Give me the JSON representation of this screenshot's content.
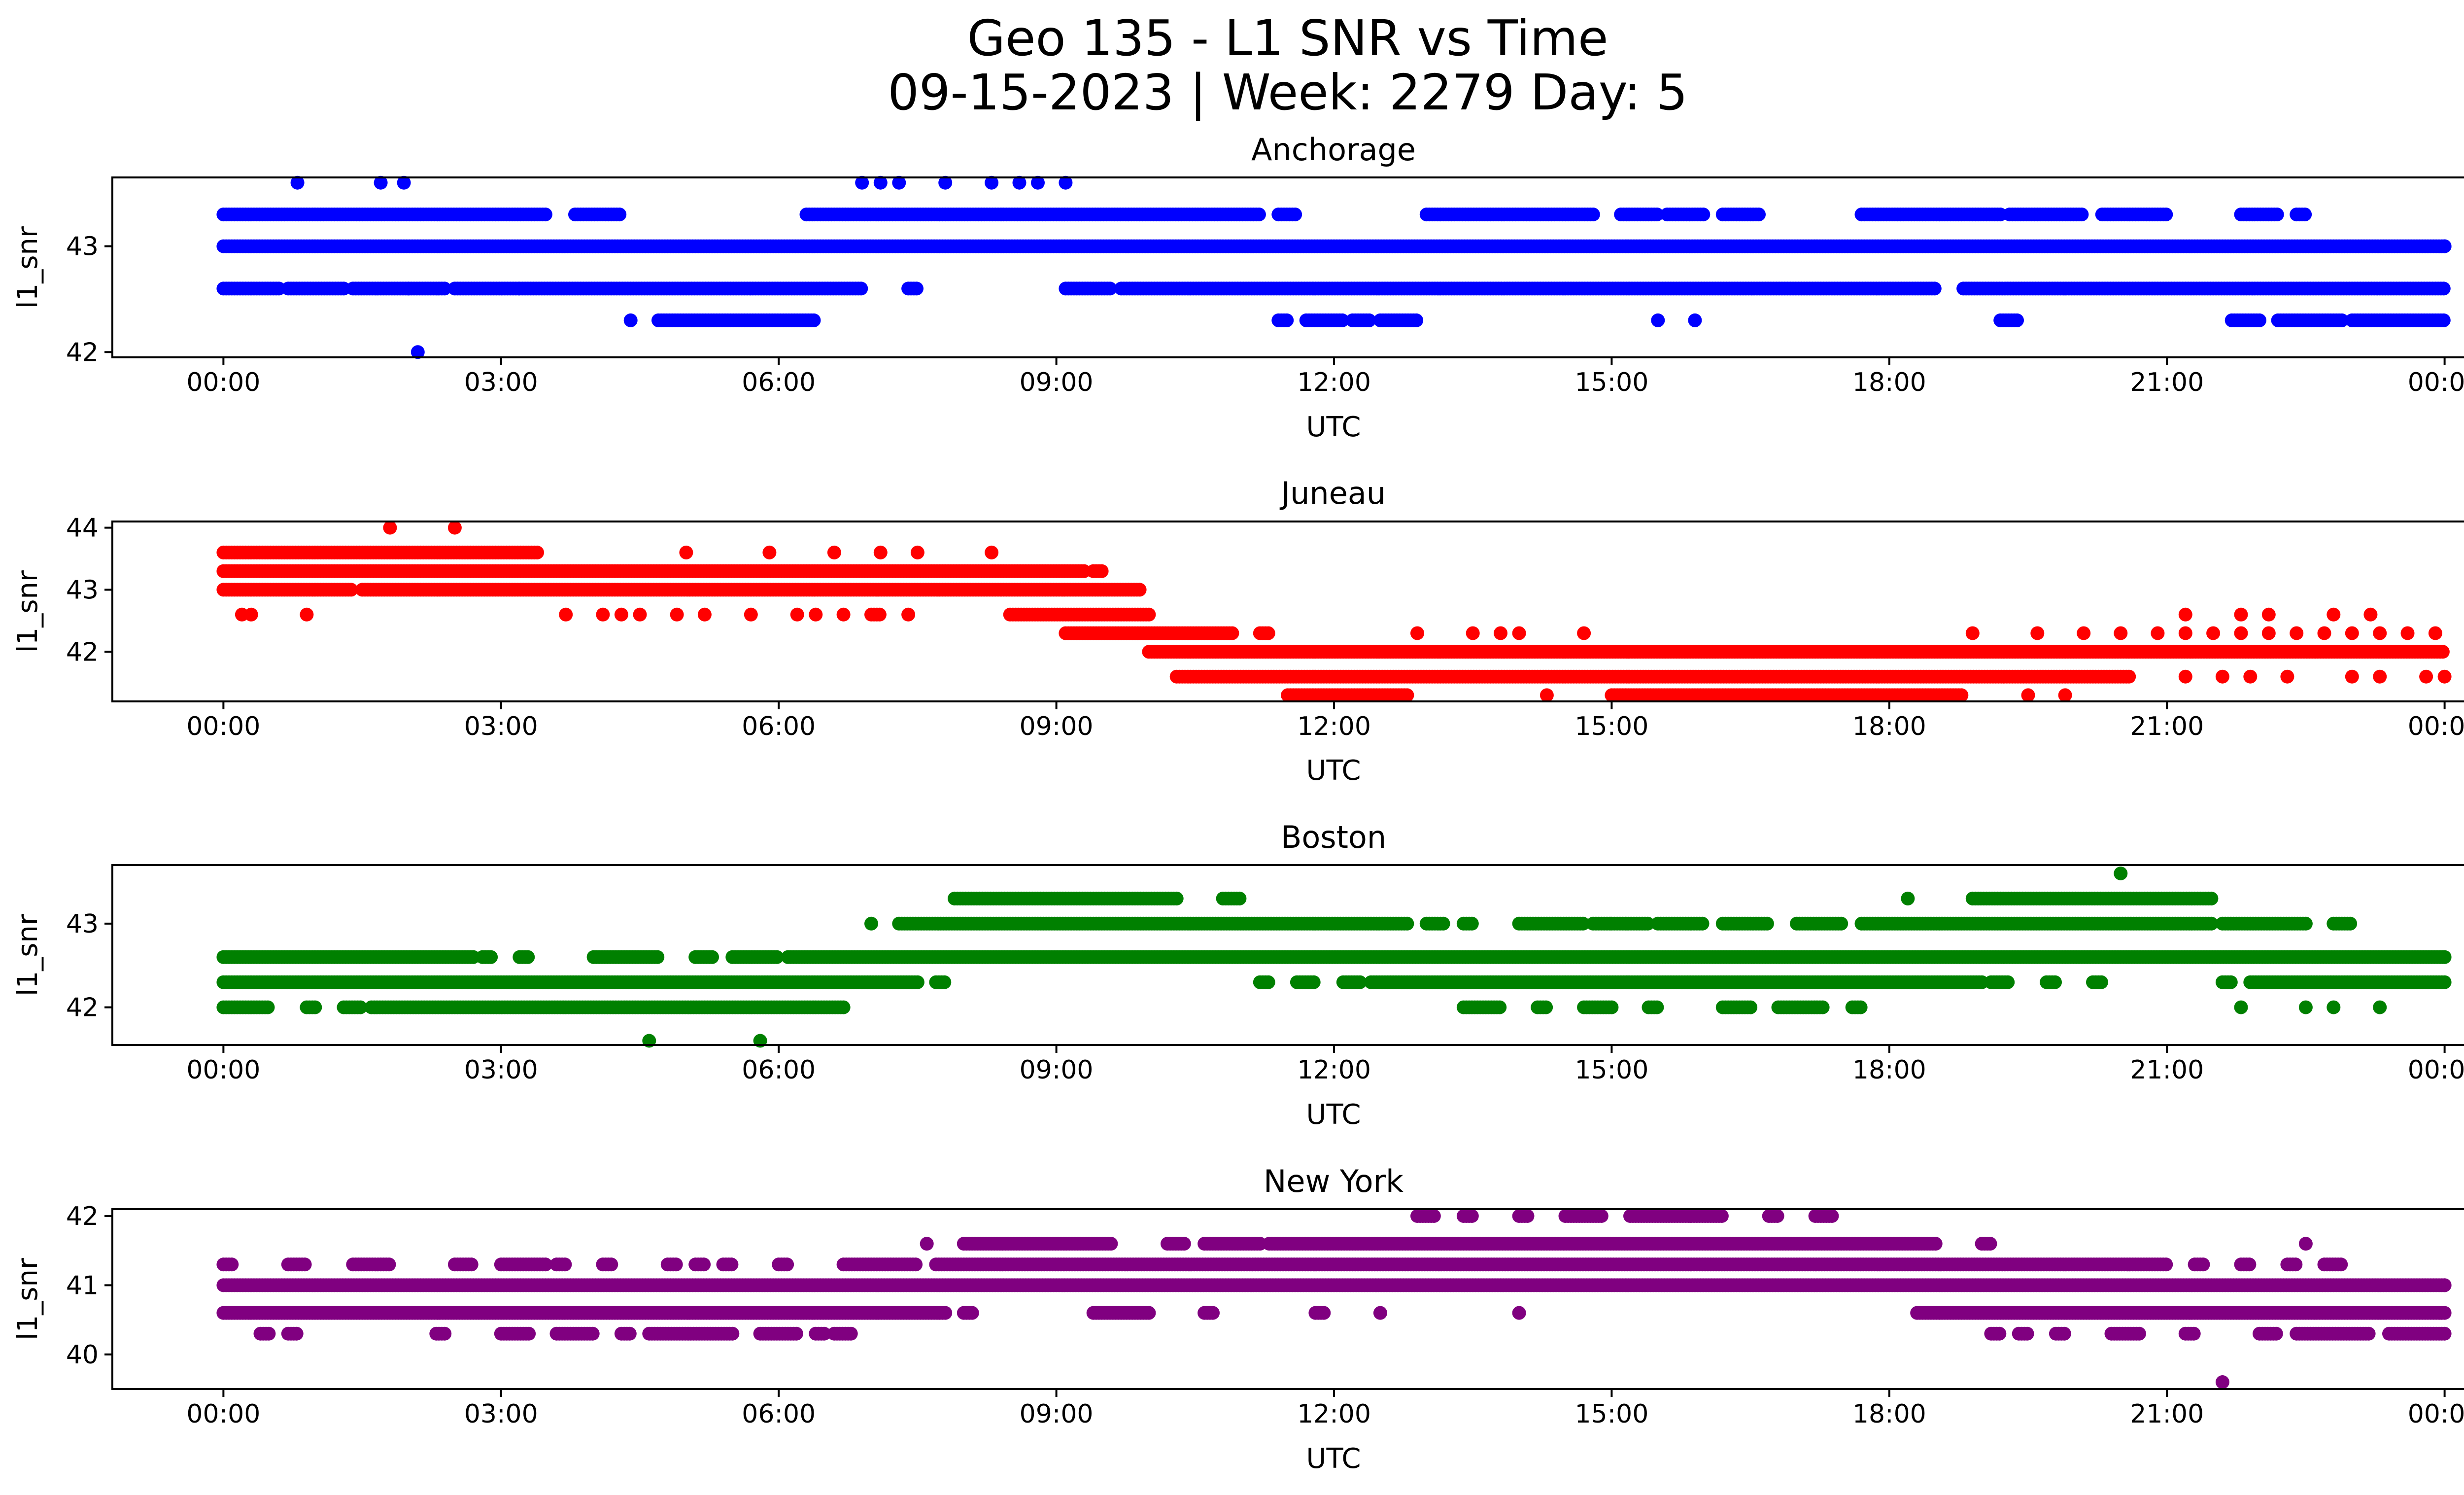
{
  "figure": {
    "title_line1": "Geo 135 - L1 SNR vs Time",
    "title_line2": "09-15-2023 | Week: 2279 Day: 5"
  },
  "chart_data": [
    {
      "type": "scatter",
      "title": "Anchorage",
      "xlabel": "UTC",
      "ylabel": "l1_snr",
      "color": "#0000ff",
      "xlim": [
        -1.2,
        25.2
      ],
      "ylim": [
        41.95,
        43.65
      ],
      "xticks": [
        "00:00",
        "03:00",
        "06:00",
        "09:00",
        "12:00",
        "15:00",
        "18:00",
        "21:00",
        "00:00"
      ],
      "xtick_values": [
        0,
        3,
        6,
        9,
        12,
        15,
        18,
        21,
        24
      ],
      "yticks": [
        42,
        43
      ],
      "bands": [
        {
          "y": 43.0,
          "x": [
            [
              0,
              24
            ]
          ]
        },
        {
          "y": 43.3,
          "x": [
            [
              0,
              3.5
            ],
            [
              3.8,
              4.3
            ],
            [
              6.3,
              11.2
            ],
            [
              11.4,
              11.6
            ],
            [
              13.0,
              14.8
            ],
            [
              15.1,
              15.5
            ],
            [
              15.6,
              16.0
            ],
            [
              16.2,
              16.6
            ],
            [
              17.7,
              19.2
            ],
            [
              19.3,
              20.1
            ],
            [
              20.3,
              21.0
            ],
            [
              21.8,
              22.2
            ],
            [
              22.4,
              22.5
            ]
          ]
        },
        {
          "y": 42.6,
          "x": [
            [
              0,
              0.6
            ],
            [
              0.7,
              1.3
            ],
            [
              1.4,
              2.0
            ],
            [
              2.0,
              2.4
            ],
            [
              2.5,
              3.2
            ],
            [
              3.2,
              6.9
            ],
            [
              7.4,
              7.5
            ],
            [
              9.1,
              9.6
            ],
            [
              9.7,
              18.5
            ],
            [
              18.8,
              24
            ]
          ]
        },
        {
          "y": 42.3,
          "x": [
            [
              4.7,
              6.4
            ],
            [
              11.4,
              11.5
            ],
            [
              11.7,
              12.1
            ],
            [
              12.2,
              12.4
            ],
            [
              12.5,
              12.9
            ],
            [
              19.2,
              19.4
            ],
            [
              21.7,
              22.0
            ],
            [
              22.2,
              22.9
            ],
            [
              23.0,
              24
            ]
          ]
        }
      ],
      "points": [
        {
          "x": 0.8,
          "y": 43.6
        },
        {
          "x": 1.7,
          "y": 43.6
        },
        {
          "x": 1.95,
          "y": 43.6
        },
        {
          "x": 6.9,
          "y": 43.6
        },
        {
          "x": 7.1,
          "y": 43.6
        },
        {
          "x": 7.3,
          "y": 43.6
        },
        {
          "x": 7.8,
          "y": 43.6
        },
        {
          "x": 8.3,
          "y": 43.6
        },
        {
          "x": 8.6,
          "y": 43.6
        },
        {
          "x": 8.8,
          "y": 43.6
        },
        {
          "x": 9.1,
          "y": 43.6
        },
        {
          "x": 2.1,
          "y": 42.0
        },
        {
          "x": 4.4,
          "y": 42.3
        },
        {
          "x": 15.5,
          "y": 42.3
        },
        {
          "x": 15.9,
          "y": 42.3
        },
        {
          "x": 24.0,
          "y": 43.0
        }
      ]
    },
    {
      "type": "scatter",
      "title": "Juneau",
      "xlabel": "UTC",
      "ylabel": "l1_snr",
      "color": "#ff0000",
      "xlim": [
        -1.2,
        25.2
      ],
      "ylim": [
        41.2,
        44.1
      ],
      "xticks": [
        "00:00",
        "03:00",
        "06:00",
        "09:00",
        "12:00",
        "15:00",
        "18:00",
        "21:00",
        "00:00"
      ],
      "xtick_values": [
        0,
        3,
        6,
        9,
        12,
        15,
        18,
        21,
        24
      ],
      "yticks": [
        42,
        43,
        44
      ],
      "bands": [
        {
          "y": 43.6,
          "x": [
            [
              0,
              3.4
            ]
          ]
        },
        {
          "y": 43.3,
          "x": [
            [
              0,
              9.3
            ],
            [
              9.4,
              9.5
            ]
          ]
        },
        {
          "y": 43.0,
          "x": [
            [
              0,
              1.4
            ],
            [
              1.5,
              9.9
            ]
          ]
        },
        {
          "y": 42.6,
          "x": [
            [
              8.5,
              10.0
            ],
            [
              7.0,
              7.1
            ]
          ]
        },
        {
          "y": 42.3,
          "x": [
            [
              9.1,
              10.9
            ],
            [
              11.2,
              11.3
            ]
          ]
        },
        {
          "y": 42.0,
          "x": [
            [
              10.0,
              24
            ]
          ]
        },
        {
          "y": 41.6,
          "x": [
            [
              10.3,
              20.6
            ]
          ]
        },
        {
          "y": 41.3,
          "x": [
            [
              11.5,
              12.8
            ],
            [
              15.0,
              18.8
            ]
          ]
        }
      ],
      "points": [
        {
          "x": 1.8,
          "y": 44.0
        },
        {
          "x": 2.5,
          "y": 44.0
        },
        {
          "x": 0.2,
          "y": 42.6
        },
        {
          "x": 0.3,
          "y": 42.6
        },
        {
          "x": 0.9,
          "y": 42.6
        },
        {
          "x": 3.7,
          "y": 42.6
        },
        {
          "x": 4.1,
          "y": 42.6
        },
        {
          "x": 4.3,
          "y": 42.6
        },
        {
          "x": 4.5,
          "y": 42.6
        },
        {
          "x": 4.9,
          "y": 42.6
        },
        {
          "x": 5.2,
          "y": 42.6
        },
        {
          "x": 5.7,
          "y": 42.6
        },
        {
          "x": 6.2,
          "y": 42.6
        },
        {
          "x": 6.4,
          "y": 42.6
        },
        {
          "x": 6.7,
          "y": 42.6
        },
        {
          "x": 7.4,
          "y": 42.6
        },
        {
          "x": 5.0,
          "y": 43.6
        },
        {
          "x": 5.9,
          "y": 43.6
        },
        {
          "x": 6.6,
          "y": 43.6
        },
        {
          "x": 7.1,
          "y": 43.6
        },
        {
          "x": 7.5,
          "y": 43.6
        },
        {
          "x": 8.3,
          "y": 43.6
        },
        {
          "x": 12.9,
          "y": 42.3
        },
        {
          "x": 13.5,
          "y": 42.3
        },
        {
          "x": 13.8,
          "y": 42.3
        },
        {
          "x": 14.0,
          "y": 42.3
        },
        {
          "x": 14.7,
          "y": 42.3
        },
        {
          "x": 18.9,
          "y": 42.3
        },
        {
          "x": 19.6,
          "y": 42.3
        },
        {
          "x": 20.1,
          "y": 42.3
        },
        {
          "x": 20.5,
          "y": 42.3
        },
        {
          "x": 20.9,
          "y": 42.3
        },
        {
          "x": 21.2,
          "y": 42.3
        },
        {
          "x": 21.5,
          "y": 42.3
        },
        {
          "x": 21.8,
          "y": 42.3
        },
        {
          "x": 22.1,
          "y": 42.3
        },
        {
          "x": 22.4,
          "y": 42.3
        },
        {
          "x": 22.7,
          "y": 42.3
        },
        {
          "x": 23.0,
          "y": 42.3
        },
        {
          "x": 23.3,
          "y": 42.3
        },
        {
          "x": 23.6,
          "y": 42.3
        },
        {
          "x": 23.9,
          "y": 42.3
        },
        {
          "x": 21.2,
          "y": 42.6
        },
        {
          "x": 21.8,
          "y": 42.6
        },
        {
          "x": 22.1,
          "y": 42.6
        },
        {
          "x": 22.8,
          "y": 42.6
        },
        {
          "x": 23.2,
          "y": 42.6
        },
        {
          "x": 21.2,
          "y": 41.6
        },
        {
          "x": 21.6,
          "y": 41.6
        },
        {
          "x": 21.9,
          "y": 41.6
        },
        {
          "x": 22.3,
          "y": 41.6
        },
        {
          "x": 23.0,
          "y": 41.6
        },
        {
          "x": 23.3,
          "y": 41.6
        },
        {
          "x": 23.8,
          "y": 41.6
        },
        {
          "x": 24.0,
          "y": 41.6
        },
        {
          "x": 14.3,
          "y": 41.3
        },
        {
          "x": 19.5,
          "y": 41.3
        },
        {
          "x": 19.9,
          "y": 41.3
        }
      ]
    },
    {
      "type": "scatter",
      "title": "Boston",
      "xlabel": "UTC",
      "ylabel": "l1_snr",
      "color": "#008000",
      "xlim": [
        -1.2,
        25.2
      ],
      "ylim": [
        41.55,
        43.7
      ],
      "xticks": [
        "00:00",
        "03:00",
        "06:00",
        "09:00",
        "12:00",
        "15:00",
        "18:00",
        "21:00",
        "00:00"
      ],
      "xtick_values": [
        0,
        3,
        6,
        9,
        12,
        15,
        18,
        21,
        24
      ],
      "yticks": [
        42,
        43
      ],
      "bands": [
        {
          "y": 42.6,
          "x": [
            [
              0,
              2.7
            ],
            [
              2.8,
              2.9
            ],
            [
              3.2,
              3.3
            ],
            [
              4.0,
              4.7
            ],
            [
              5.1,
              5.3
            ],
            [
              5.5,
              6.0
            ],
            [
              6.1,
              24
            ]
          ]
        },
        {
          "y": 42.3,
          "x": [
            [
              0,
              7.5
            ],
            [
              7.7,
              7.8
            ],
            [
              11.2,
              11.3
            ],
            [
              11.6,
              11.8
            ],
            [
              12.1,
              12.3
            ],
            [
              12.4,
              19.0
            ],
            [
              19.1,
              19.3
            ],
            [
              19.7,
              19.8
            ],
            [
              20.2,
              20.3
            ],
            [
              21.6,
              21.7
            ],
            [
              21.9,
              24
            ]
          ]
        },
        {
          "y": 42.0,
          "x": [
            [
              0,
              0.5
            ],
            [
              0.9,
              1.0
            ],
            [
              1.3,
              1.5
            ],
            [
              1.6,
              6.7
            ],
            [
              13.4,
              13.8
            ],
            [
              14.2,
              14.3
            ],
            [
              14.7,
              15.0
            ],
            [
              15.4,
              15.5
            ],
            [
              16.2,
              16.5
            ],
            [
              16.8,
              17.3
            ],
            [
              17.6,
              17.7
            ]
          ]
        },
        {
          "y": 43.0,
          "x": [
            [
              7.3,
              12.8
            ],
            [
              13.0,
              13.2
            ],
            [
              13.4,
              13.5
            ],
            [
              14.0,
              14.7
            ],
            [
              14.8,
              15.0
            ],
            [
              15.0,
              15.4
            ],
            [
              15.5,
              16.0
            ],
            [
              16.2,
              16.7
            ],
            [
              17.0,
              17.5
            ],
            [
              17.7,
              21.5
            ],
            [
              21.6,
              22.5
            ],
            [
              22.8,
              23.0
            ]
          ]
        },
        {
          "y": 43.3,
          "x": [
            [
              7.9,
              10.3
            ],
            [
              10.8,
              11.0
            ],
            [
              18.9,
              21.5
            ]
          ]
        }
      ],
      "points": [
        {
          "x": 7.0,
          "y": 43.0
        },
        {
          "x": 18.2,
          "y": 43.3
        },
        {
          "x": 20.5,
          "y": 43.6
        },
        {
          "x": 4.6,
          "y": 41.6
        },
        {
          "x": 5.8,
          "y": 41.6
        },
        {
          "x": 21.8,
          "y": 42.0
        },
        {
          "x": 22.5,
          "y": 42.0
        },
        {
          "x": 22.8,
          "y": 42.0
        },
        {
          "x": 23.3,
          "y": 42.0
        },
        {
          "x": 24.0,
          "y": 42.6
        }
      ]
    },
    {
      "type": "scatter",
      "title": "New York",
      "xlabel": "UTC",
      "ylabel": "l1_snr",
      "color": "#800080",
      "xlim": [
        -1.2,
        25.2
      ],
      "ylim": [
        39.5,
        42.1
      ],
      "xticks": [
        "00:00",
        "03:00",
        "06:00",
        "09:00",
        "12:00",
        "15:00",
        "18:00",
        "21:00",
        "00:00"
      ],
      "xtick_values": [
        0,
        3,
        6,
        9,
        12,
        15,
        18,
        21,
        24
      ],
      "yticks": [
        40,
        41,
        42
      ],
      "bands": [
        {
          "y": 41.0,
          "x": [
            [
              0,
              24
            ]
          ]
        },
        {
          "y": 40.6,
          "x": [
            [
              0,
              7.8
            ],
            [
              8.0,
              8.1
            ],
            [
              9.4,
              10.0
            ],
            [
              10.6,
              10.7
            ],
            [
              11.8,
              11.9
            ],
            [
              18.3,
              24
            ]
          ]
        },
        {
          "y": 41.3,
          "x": [
            [
              0,
              0.1
            ],
            [
              0.7,
              0.9
            ],
            [
              1.4,
              1.8
            ],
            [
              2.5,
              2.7
            ],
            [
              3.0,
              3.5
            ],
            [
              3.6,
              3.7
            ],
            [
              4.1,
              4.2
            ],
            [
              4.8,
              4.9
            ],
            [
              5.1,
              5.2
            ],
            [
              5.4,
              5.5
            ],
            [
              6.0,
              6.1
            ],
            [
              6.7,
              7.5
            ],
            [
              7.7,
              21.0
            ],
            [
              21.3,
              21.4
            ],
            [
              21.8,
              21.9
            ],
            [
              22.3,
              22.4
            ],
            [
              22.7,
              22.9
            ]
          ]
        },
        {
          "y": 41.6,
          "x": [
            [
              8.0,
              9.6
            ],
            [
              10.2,
              10.4
            ],
            [
              10.6,
              11.2
            ],
            [
              11.3,
              18.5
            ],
            [
              19.0,
              19.1
            ]
          ]
        },
        {
          "y": 40.3,
          "x": [
            [
              0.4,
              0.5
            ],
            [
              0.7,
              0.8
            ],
            [
              2.3,
              2.4
            ],
            [
              3.0,
              3.3
            ],
            [
              3.6,
              4.0
            ],
            [
              4.3,
              4.4
            ],
            [
              4.6,
              5.5
            ],
            [
              5.8,
              6.2
            ],
            [
              6.4,
              6.5
            ],
            [
              6.6,
              6.8
            ],
            [
              19.1,
              19.2
            ],
            [
              19.4,
              19.5
            ],
            [
              19.8,
              19.9
            ],
            [
              20.4,
              20.7
            ],
            [
              21.2,
              21.3
            ],
            [
              22.0,
              22.2
            ],
            [
              22.4,
              23.2
            ],
            [
              23.4,
              24
            ]
          ]
        },
        {
          "y": 42.0,
          "x": [
            [
              12.9,
              13.1
            ],
            [
              13.4,
              13.5
            ],
            [
              14.0,
              14.1
            ],
            [
              14.5,
              14.9
            ],
            [
              15.2,
              16.2
            ],
            [
              16.7,
              16.8
            ],
            [
              17.2,
              17.4
            ]
          ]
        }
      ],
      "points": [
        {
          "x": 7.6,
          "y": 41.6
        },
        {
          "x": 21.6,
          "y": 39.6
        },
        {
          "x": 22.5,
          "y": 41.6
        },
        {
          "x": 14.0,
          "y": 40.6
        },
        {
          "x": 12.5,
          "y": 40.6
        },
        {
          "x": 24.0,
          "y": 41.0
        }
      ]
    }
  ]
}
